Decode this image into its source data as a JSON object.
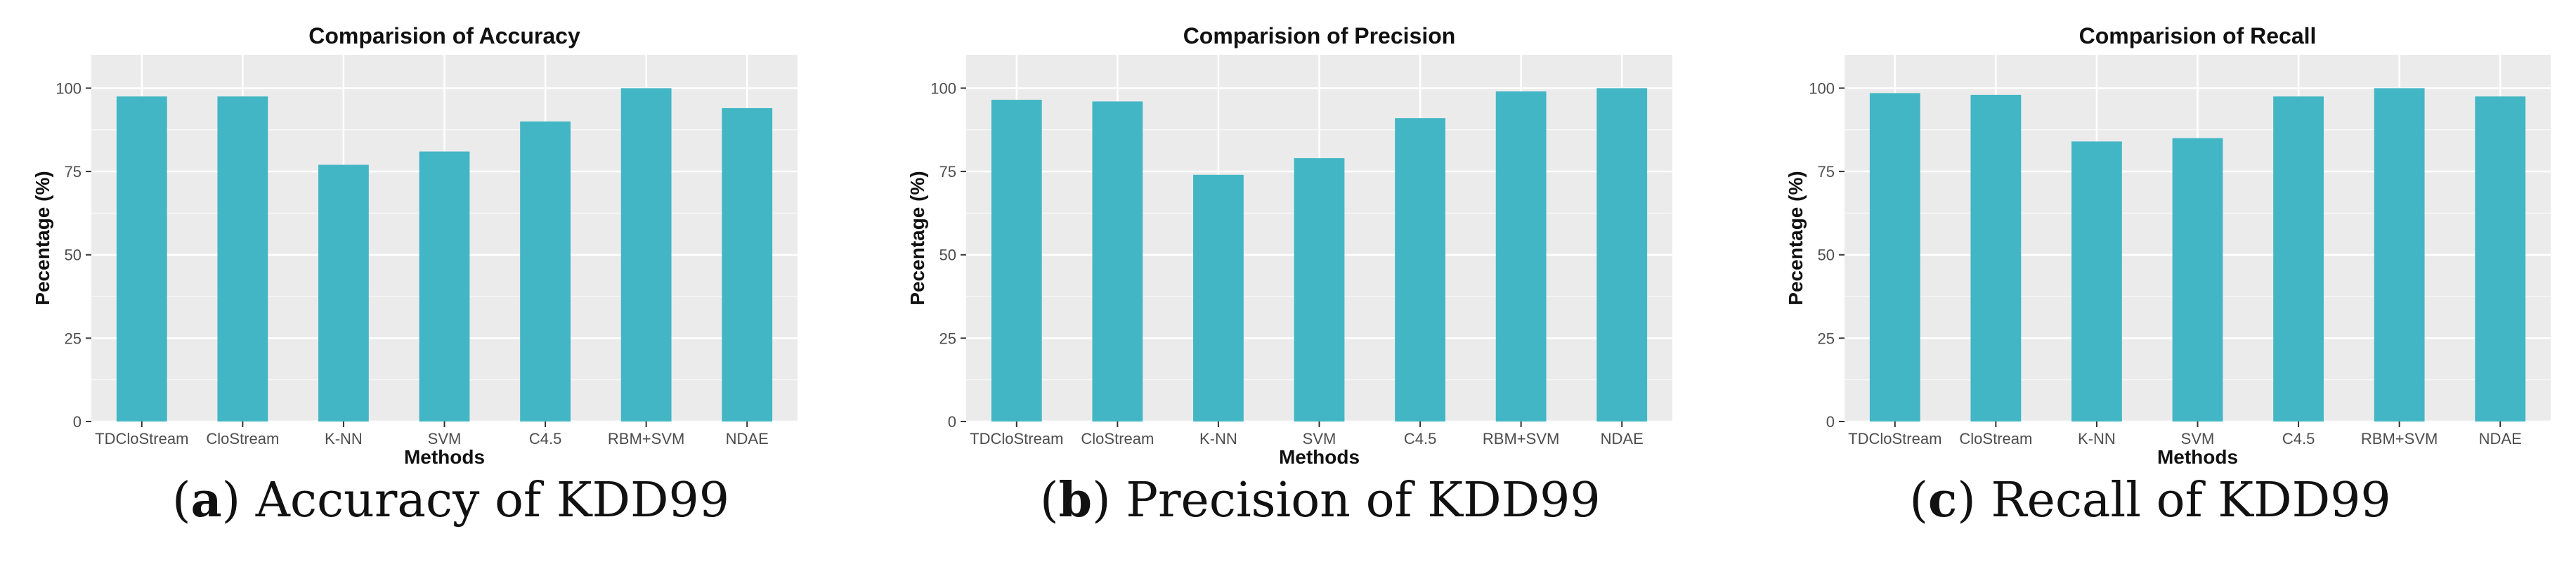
{
  "colors": {
    "bar": "#42B6C4",
    "panel_bg": "#EBEBEB",
    "grid": "#FFFFFF",
    "text": "#111111",
    "tick_text": "#4D4D4D"
  },
  "chart_data": [
    {
      "type": "bar",
      "title": "Comparision of Accuracy",
      "xlabel": "Methods",
      "ylabel": "Pecentage (%)",
      "categories": [
        "TDCloStream",
        "CloStream",
        "K-NN",
        "SVM",
        "C4.5",
        "RBM+SVM",
        "NDAE"
      ],
      "values": [
        97.5,
        97.5,
        77,
        81,
        90,
        100,
        94
      ],
      "ylim": [
        0,
        110
      ],
      "yticks": [
        "0",
        "25",
        "50",
        "75",
        "100"
      ],
      "grid": true,
      "caption_letter": "a",
      "caption_text": "Accuracy of KDD99"
    },
    {
      "type": "bar",
      "title": "Comparision of Precision",
      "xlabel": "Methods",
      "ylabel": "Pecentage (%)",
      "categories": [
        "TDCloStream",
        "CloStream",
        "K-NN",
        "SVM",
        "C4.5",
        "RBM+SVM",
        "NDAE"
      ],
      "values": [
        96.5,
        96,
        74,
        79,
        91,
        99,
        100
      ],
      "ylim": [
        0,
        110
      ],
      "yticks": [
        "0",
        "25",
        "50",
        "75",
        "100"
      ],
      "grid": true,
      "caption_letter": "b",
      "caption_text": "Precision of KDD99"
    },
    {
      "type": "bar",
      "title": "Comparision of Recall",
      "xlabel": "Methods",
      "ylabel": "Pecentage (%)",
      "categories": [
        "TDCloStream",
        "CloStream",
        "K-NN",
        "SVM",
        "C4.5",
        "RBM+SVM",
        "NDAE"
      ],
      "values": [
        98.5,
        98,
        84,
        85,
        97.5,
        100,
        97.5
      ],
      "ylim": [
        0,
        110
      ],
      "yticks": [
        "0",
        "25",
        "50",
        "75",
        "100"
      ],
      "grid": true,
      "caption_letter": "c",
      "caption_text": "Recall of KDD99"
    }
  ]
}
